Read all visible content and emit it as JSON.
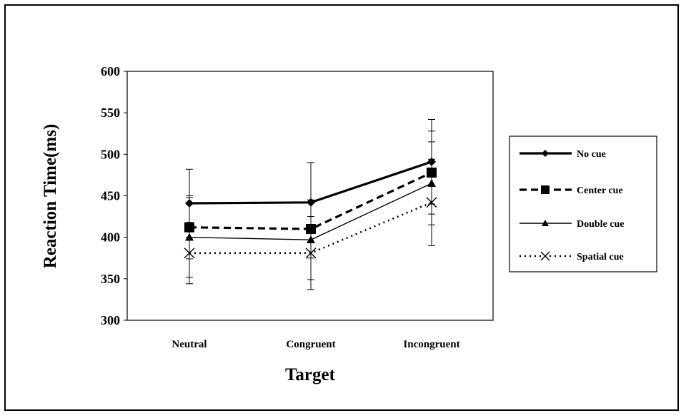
{
  "chart_data": {
    "type": "line",
    "title": "",
    "xlabel": "Target",
    "ylabel": "Reaction Time(ms)",
    "categories": [
      "Neutral",
      "Congruent",
      "Incongruent"
    ],
    "ylim": [
      300,
      600
    ],
    "yticks": [
      300,
      350,
      400,
      450,
      500,
      550,
      600
    ],
    "grid": false,
    "legend_position": "right",
    "series": [
      {
        "name": "No cue",
        "values": [
          441,
          442,
          491
        ],
        "errors": [
          41,
          48,
          51
        ],
        "marker": "diamond",
        "line_style": "solid-thick"
      },
      {
        "name": "Center cue",
        "values": [
          412,
          410,
          478
        ],
        "errors": [
          38,
          35,
          50
        ],
        "marker": "square",
        "line_style": "dashed"
      },
      {
        "name": "Double cue",
        "values": [
          400,
          397,
          465
        ],
        "errors": [
          48,
          48,
          50
        ],
        "marker": "triangle",
        "line_style": "solid-thin"
      },
      {
        "name": "Spatial cue",
        "values": [
          381,
          381,
          442
        ],
        "errors": [
          37,
          44,
          52
        ],
        "marker": "x",
        "line_style": "dotted"
      }
    ]
  }
}
